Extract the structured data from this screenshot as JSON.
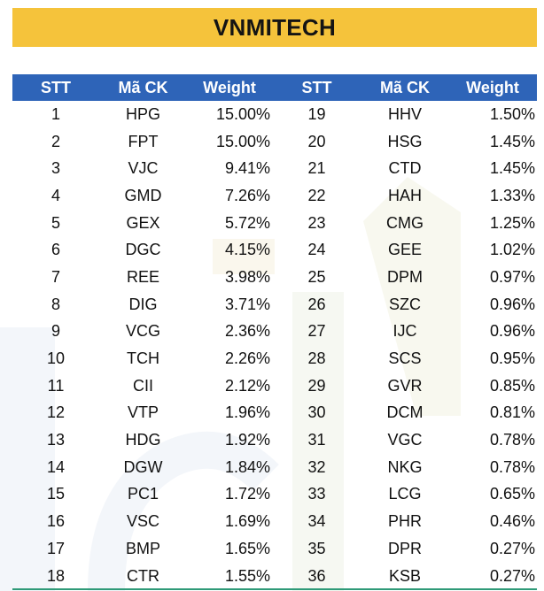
{
  "title": "VNMITECH",
  "headers": [
    "STT",
    "Mã CK",
    "Weight",
    "STT",
    "Mã CK",
    "Weight"
  ],
  "rows": [
    {
      "stt1": "1",
      "ck1": "HPG",
      "w1": "15.00%",
      "stt2": "19",
      "ck2": "HHV",
      "w2": "1.50%"
    },
    {
      "stt1": "2",
      "ck1": "FPT",
      "w1": "15.00%",
      "stt2": "20",
      "ck2": "HSG",
      "w2": "1.45%"
    },
    {
      "stt1": "3",
      "ck1": "VJC",
      "w1": "9.41%",
      "stt2": "21",
      "ck2": "CTD",
      "w2": "1.45%"
    },
    {
      "stt1": "4",
      "ck1": "GMD",
      "w1": "7.26%",
      "stt2": "22",
      "ck2": "HAH",
      "w2": "1.33%"
    },
    {
      "stt1": "5",
      "ck1": "GEX",
      "w1": "5.72%",
      "stt2": "23",
      "ck2": "CMG",
      "w2": "1.25%"
    },
    {
      "stt1": "6",
      "ck1": "DGC",
      "w1": "4.15%",
      "stt2": "24",
      "ck2": "GEE",
      "w2": "1.02%"
    },
    {
      "stt1": "7",
      "ck1": "REE",
      "w1": "3.98%",
      "stt2": "25",
      "ck2": "DPM",
      "w2": "0.97%"
    },
    {
      "stt1": "8",
      "ck1": "DIG",
      "w1": "3.71%",
      "stt2": "26",
      "ck2": "SZC",
      "w2": "0.96%"
    },
    {
      "stt1": "9",
      "ck1": "VCG",
      "w1": "2.36%",
      "stt2": "27",
      "ck2": "IJC",
      "w2": "0.96%"
    },
    {
      "stt1": "10",
      "ck1": "TCH",
      "w1": "2.26%",
      "stt2": "28",
      "ck2": "SCS",
      "w2": "0.95%"
    },
    {
      "stt1": "11",
      "ck1": "CII",
      "w1": "2.12%",
      "stt2": "29",
      "ck2": "GVR",
      "w2": "0.85%"
    },
    {
      "stt1": "12",
      "ck1": "VTP",
      "w1": "1.96%",
      "stt2": "30",
      "ck2": "DCM",
      "w2": "0.81%"
    },
    {
      "stt1": "13",
      "ck1": "HDG",
      "w1": "1.92%",
      "stt2": "31",
      "ck2": "VGC",
      "w2": "0.78%"
    },
    {
      "stt1": "14",
      "ck1": "DGW",
      "w1": "1.84%",
      "stt2": "32",
      "ck2": "NKG",
      "w2": "0.78%"
    },
    {
      "stt1": "15",
      "ck1": "PC1",
      "w1": "1.72%",
      "stt2": "33",
      "ck2": "LCG",
      "w2": "0.65%"
    },
    {
      "stt1": "16",
      "ck1": "VSC",
      "w1": "1.69%",
      "stt2": "34",
      "ck2": "PHR",
      "w2": "0.46%"
    },
    {
      "stt1": "17",
      "ck1": "BMP",
      "w1": "1.65%",
      "stt2": "35",
      "ck2": "DPR",
      "w2": "0.27%"
    },
    {
      "stt1": "18",
      "ck1": "CTR",
      "w1": "1.55%",
      "stt2": "36",
      "ck2": "KSB",
      "w2": "0.27%"
    }
  ],
  "colors": {
    "title_bg": "#f5c33b",
    "header_bg": "#2e64b8",
    "header_text": "#ffffff",
    "body_text": "#111111",
    "bottom_rule": "#2f9a78"
  }
}
